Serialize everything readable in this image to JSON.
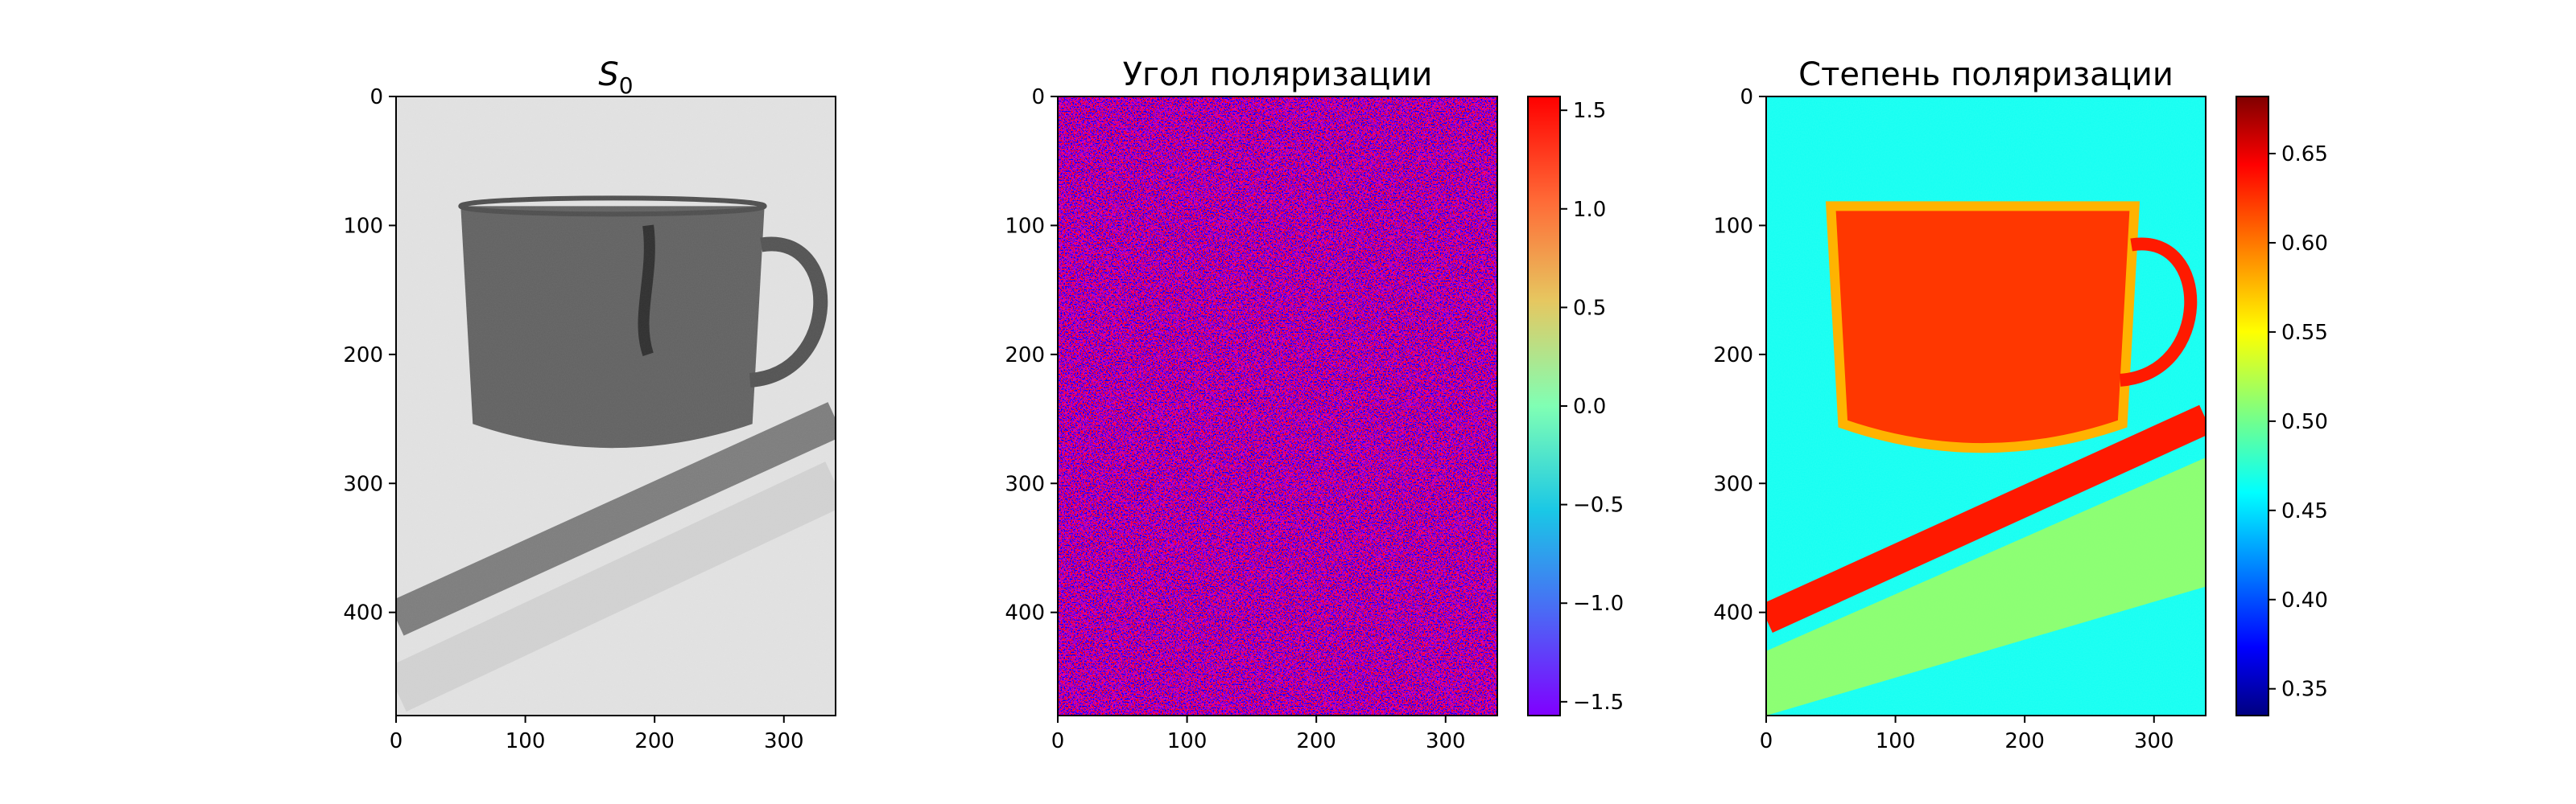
{
  "chart_data": [
    {
      "type": "heatmap",
      "title_main": "S",
      "title_sub": "0",
      "colormap": "gray",
      "x_ticks": [
        0,
        100,
        200,
        300
      ],
      "y_ticks": [
        0,
        100,
        200,
        300,
        400
      ],
      "xlim": [
        0,
        340
      ],
      "ylim": [
        480,
        0
      ],
      "image": {
        "background_value": 0.88,
        "cup_value": 0.38,
        "stripe_value": 0.42,
        "cup_x_range": [
          50,
          285
        ],
        "cup_y_range": [
          85,
          285
        ],
        "stripe_from": [
          0,
          405
        ],
        "stripe_to": [
          340,
          250
        ]
      }
    },
    {
      "type": "heatmap",
      "title": "Угол поляризации",
      "colormap": "rainbow",
      "x_ticks": [
        0,
        100,
        200,
        300
      ],
      "y_ticks": [
        0,
        100,
        200,
        300,
        400
      ],
      "xlim": [
        0,
        340
      ],
      "ylim": [
        480,
        0
      ],
      "colorbar": {
        "min": -1.57,
        "max": 1.57,
        "ticks": [
          "1.5",
          "1.0",
          "0.5",
          "0.0",
          "−0.5",
          "−1.0",
          "−1.5"
        ],
        "tick_values": [
          1.5,
          1.0,
          0.5,
          0.0,
          -0.5,
          -1.0,
          -1.5
        ]
      },
      "image": {
        "pattern": "noise",
        "dominant_values": [
          1.57,
          -1.57
        ]
      }
    },
    {
      "type": "heatmap",
      "title": "Степень поляризации",
      "colormap": "jet",
      "x_ticks": [
        0,
        100,
        200,
        300
      ],
      "y_ticks": [
        0,
        100,
        200,
        300,
        400
      ],
      "xlim": [
        0,
        340
      ],
      "ylim": [
        480,
        0
      ],
      "colorbar": {
        "min": 0.335,
        "max": 0.682,
        "ticks": [
          "0.65",
          "0.60",
          "0.55",
          "0.50",
          "0.45",
          "0.40",
          "0.35"
        ],
        "tick_values": [
          0.65,
          0.6,
          0.55,
          0.5,
          0.45,
          0.4,
          0.35
        ]
      },
      "image": {
        "background_value": 0.47,
        "cup_value": 0.62,
        "stripe_value": 0.63,
        "lower_band_value": 0.52,
        "cup_x_range": [
          50,
          285
        ],
        "cup_y_range": [
          85,
          285
        ],
        "stripe_from": [
          0,
          405
        ],
        "stripe_to": [
          340,
          250
        ]
      }
    }
  ]
}
